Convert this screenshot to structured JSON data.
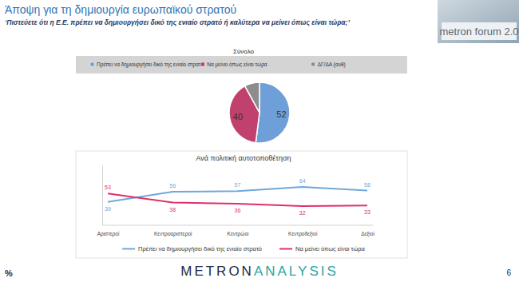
{
  "header": {
    "title": "Άποψη για τη δημιουργία ευρωπαϊκού στρατού",
    "subtitle": "‘Πιστεύετε ότι η Ε.Ε. πρέπει να δημιουργήσει δικό της ενιαίο στρατό ή καλύτερα να μείνει όπως είναι τώρα;’",
    "logo": "metron forum 2.0"
  },
  "footer": {
    "unit": "%",
    "brand": [
      "METRON",
      "ANALYSIS"
    ],
    "page": "6"
  },
  "chart_data": [
    {
      "type": "pie",
      "title": "Σύνολο",
      "categories": [
        "Πρέπει να δημιουργήσει δικό της ενιαίο στρατό",
        "Να μείνει όπως είναι τώρα",
        "ΔΓ/ΔΑ (αυθ)"
      ],
      "values": [
        52,
        40,
        8
      ],
      "value_labels": [
        "52",
        "40",
        null
      ],
      "colors": [
        "#6f9fd8",
        "#c0406e",
        "#8c8c8c"
      ],
      "data_labels": true,
      "legend": "top"
    },
    {
      "type": "line",
      "title": "Ανά πολιτική αυτοτοποθέτηση",
      "categories": [
        "Αριστεροί",
        "Κεντροαριστεροί",
        "Κεντρώοι",
        "Κεντροδεξιοί",
        "Δεξιοί"
      ],
      "series": [
        {
          "name": "Πρέπει να δημιουργήσει δικό της ενιαίο στρατό",
          "color": "#6fa8dc",
          "values": [
            39,
            56,
            57,
            64,
            58
          ]
        },
        {
          "name": "Να μείνει όπως είναι τώρα",
          "color": "#e0306a",
          "values": [
            53,
            38,
            36,
            32,
            33
          ]
        }
      ],
      "ylim": [
        0,
        100
      ],
      "data_labels": true,
      "legend": "bottom",
      "tick_labels": "x"
    }
  ]
}
